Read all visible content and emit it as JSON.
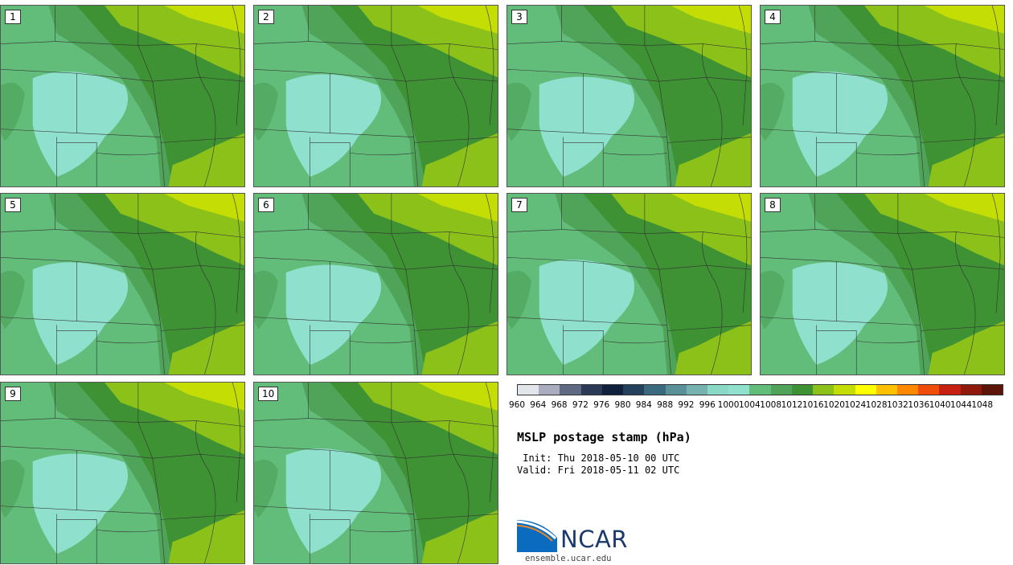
{
  "panels": [
    {
      "label": "1"
    },
    {
      "label": "2"
    },
    {
      "label": "3"
    },
    {
      "label": "4"
    },
    {
      "label": "5"
    },
    {
      "label": "6"
    },
    {
      "label": "7"
    },
    {
      "label": "8"
    },
    {
      "label": "9"
    },
    {
      "label": "10"
    }
  ],
  "colorbar": {
    "ticks": [
      "960",
      "964",
      "968",
      "972",
      "976",
      "980",
      "984",
      "988",
      "992",
      "996",
      "1000",
      "1004",
      "1008",
      "1012",
      "1016",
      "1020",
      "1024",
      "1028",
      "1032",
      "1036",
      "1040",
      "1044",
      "1048"
    ],
    "colors": [
      "#e2e5ea",
      "#a9adbf",
      "#5f6a82",
      "#2a3956",
      "#10213d",
      "#23415c",
      "#3b6a7e",
      "#5a9198",
      "#76b3b0",
      "#8ad9c7",
      "#8fe0cd",
      "#63bd7a",
      "#4fa45a",
      "#3e9234",
      "#8cc11a",
      "#c4de05",
      "#ffff00",
      "#ffc000",
      "#ff8800",
      "#f04d0a",
      "#c52010",
      "#8f1a0c",
      "#5c1508"
    ]
  },
  "title": "MSLP postage stamp (hPa)",
  "init": " Init: Thu 2018-05-10 00 UTC",
  "valid": "Valid: Fri 2018-05-11 02 UTC",
  "logo": {
    "name": "NCAR",
    "url": "ensemble.ucar.edu"
  },
  "map_colors": {
    "c1000": "#8fe0cd",
    "c1004": "#63bd7a",
    "c1008": "#4fa45a",
    "c1012": "#3e9234",
    "c1016": "#8cc11a",
    "c1020": "#c4de05",
    "border": "#333333"
  }
}
